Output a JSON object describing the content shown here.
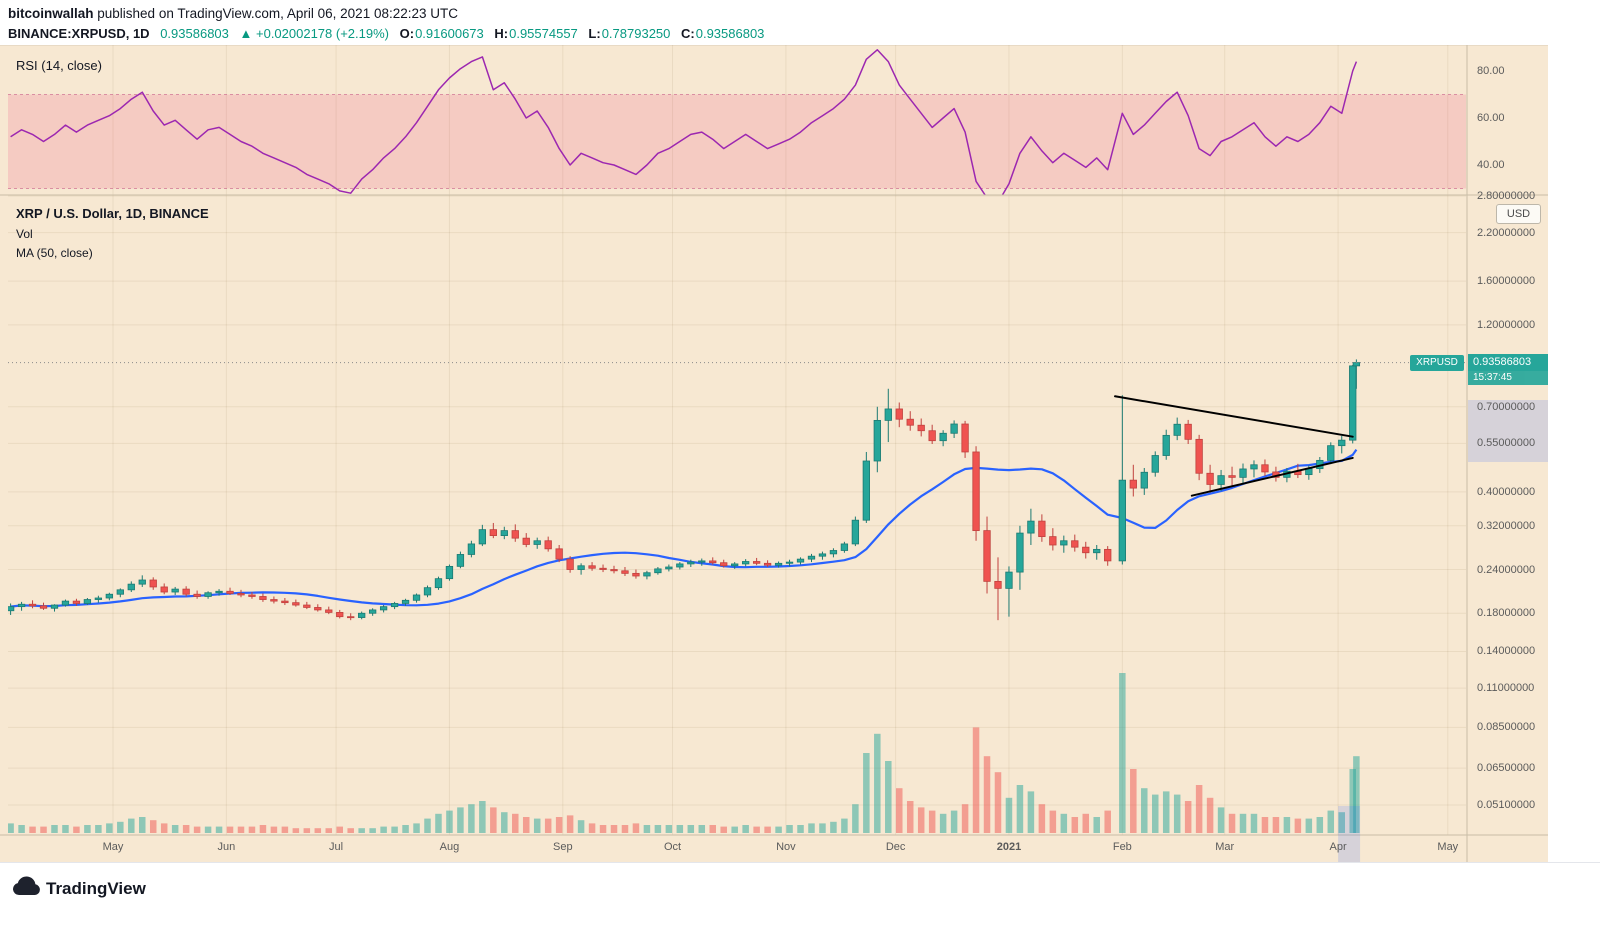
{
  "header": {
    "author": "bitcoinwallah",
    "published_suffix": " published on TradingView.com, April 06, 2021 08:22:23 UTC",
    "symbol_interval": "BINANCE:XRPUSD, 1D",
    "last_price": "0.93586803",
    "change": "▲ +0.02002178 (+2.19%)",
    "ohlc": [
      {
        "label": "O:",
        "value": "0.91600673"
      },
      {
        "label": "H:",
        "value": "0.95574557"
      },
      {
        "label": "L:",
        "value": "0.78793250"
      },
      {
        "label": "C:",
        "value": "0.93586803"
      }
    ]
  },
  "rsi_panel": {
    "legend": "RSI (14, close)"
  },
  "main_panel": {
    "legend_title": "XRP / U.S. Dollar, 1D, BINANCE",
    "legend_vol": "Vol",
    "legend_ma": "MA (50, close)",
    "currency_button": "USD",
    "price_badge": {
      "symbol_tag": "XRPUSD",
      "price": "0.93586803",
      "countdown": "15:37:45"
    }
  },
  "footer": {
    "brand": "TradingView"
  },
  "colors": {
    "background": "#f7e8d2",
    "grid": "rgba(128,96,48,0.10)",
    "panel_divider": "#c9bda7",
    "up": "#26a69a",
    "up_dark": "#1b7a72",
    "down": "#ef5350",
    "down_dark": "#c0413e",
    "volume_up": "rgba(38,166,154,0.5)",
    "volume_down": "rgba(239,83,80,0.5)",
    "ma": "#2962ff",
    "rsi_line": "#9c27b0",
    "rsi_band_fill": "rgba(233,30,99,0.14)",
    "rsi_band_edge": "rgba(194,80,130,0.55)",
    "trendline": "#000000",
    "price_line": "#8a8a8a",
    "badge_bg": "#26a69a",
    "value_up_text": "#089981",
    "axis_highlight": "rgba(41,98,255,0.16)",
    "footer_logo": "#1e222d"
  },
  "chart_data": {
    "type": "candlestick",
    "title": "XRP / U.S. Dollar, 1D, BINANCE",
    "symbol": "BINANCE:XRPUSD",
    "interval": "1D",
    "scale": "log",
    "current_price": 0.93586803,
    "countdown": "15:37:45",
    "x_range": [
      "2020-04-03",
      "2021-05-06"
    ],
    "x_ticks": [
      {
        "label": "May",
        "date": "2020-05-01"
      },
      {
        "label": "Jun",
        "date": "2020-06-01"
      },
      {
        "label": "Jul",
        "date": "2020-07-01"
      },
      {
        "label": "Aug",
        "date": "2020-08-01"
      },
      {
        "label": "Sep",
        "date": "2020-09-01"
      },
      {
        "label": "Oct",
        "date": "2020-10-01"
      },
      {
        "label": "Nov",
        "date": "2020-11-01"
      },
      {
        "label": "Dec",
        "date": "2020-12-01"
      },
      {
        "label": "2021",
        "date": "2021-01-01",
        "bold": true
      },
      {
        "label": "Feb",
        "date": "2021-02-01"
      },
      {
        "label": "Mar",
        "date": "2021-03-01"
      },
      {
        "label": "Apr",
        "date": "2021-04-01"
      },
      {
        "label": "May",
        "date": "2021-05-01"
      }
    ],
    "y_ticks": [
      {
        "label": "2.80000000",
        "value": 2.8
      },
      {
        "label": "2.20000000",
        "value": 2.2
      },
      {
        "label": "1.60000000",
        "value": 1.6
      },
      {
        "label": "1.20000000",
        "value": 1.2
      },
      {
        "label": "0.70000000",
        "value": 0.7
      },
      {
        "label": "0.55000000",
        "value": 0.55
      },
      {
        "label": "0.40000000",
        "value": 0.4
      },
      {
        "label": "0.32000000",
        "value": 0.32
      },
      {
        "label": "0.24000000",
        "value": 0.24
      },
      {
        "label": "0.18000000",
        "value": 0.18
      },
      {
        "label": "0.14000000",
        "value": 0.14
      },
      {
        "label": "0.11000000",
        "value": 0.11
      },
      {
        "label": "0.08500000",
        "value": 0.085
      },
      {
        "label": "0.06500000",
        "value": 0.065
      },
      {
        "label": "0.05100000",
        "value": 0.051
      }
    ],
    "ma": {
      "period_days": 50
    },
    "rsi": {
      "period": 14,
      "band": [
        30,
        70
      ],
      "ticks": [
        {
          "label": "80.00",
          "value": 80
        },
        {
          "label": "60.00",
          "value": 60
        },
        {
          "label": "40.00",
          "value": 40
        }
      ],
      "values": [
        52,
        55,
        53,
        50,
        53,
        57,
        54,
        57,
        59,
        61,
        64,
        68,
        71,
        63,
        57,
        59,
        55,
        51,
        55,
        56,
        53,
        50,
        48,
        45,
        43,
        41,
        39,
        36,
        34,
        32,
        29,
        28,
        34,
        38,
        43,
        47,
        52,
        58,
        65,
        72,
        77,
        81,
        84,
        86,
        72,
        75,
        68,
        60,
        63,
        56,
        47,
        40,
        45,
        43,
        41,
        40,
        38,
        36,
        40,
        45,
        47,
        50,
        53,
        54,
        51,
        47,
        50,
        53,
        50,
        47,
        49,
        51,
        54,
        58,
        61,
        64,
        68,
        74,
        85,
        89,
        84,
        74,
        68,
        62,
        56,
        60,
        64,
        54,
        33,
        26,
        24,
        32,
        45,
        52,
        46,
        41,
        45,
        42,
        39,
        43,
        38,
        62,
        53,
        57,
        62,
        67,
        71,
        61,
        47,
        44,
        50,
        52,
        55,
        58,
        52,
        48,
        52,
        50,
        53,
        58,
        65,
        62,
        80,
        84
      ]
    },
    "trendlines": [
      {
        "x1": "2021-01-30",
        "p1": 0.75,
        "x2": "2021-04-05",
        "p2": 0.575
      },
      {
        "x1": "2021-02-20",
        "p1": 0.39,
        "x2": "2021-04-05",
        "p2": 0.5
      }
    ],
    "ohlc_format": [
      "date",
      "open",
      "high",
      "low",
      "close",
      "volume_relative_0_100"
    ],
    "candles": [
      [
        "2020-04-03",
        0.183,
        0.192,
        0.178,
        0.188,
        6
      ],
      [
        "2020-04-06",
        0.188,
        0.194,
        0.183,
        0.191,
        5
      ],
      [
        "2020-04-09",
        0.191,
        0.196,
        0.186,
        0.189,
        4
      ],
      [
        "2020-04-12",
        0.189,
        0.193,
        0.184,
        0.186,
        4
      ],
      [
        "2020-04-15",
        0.186,
        0.191,
        0.182,
        0.19,
        5
      ],
      [
        "2020-04-18",
        0.19,
        0.197,
        0.188,
        0.195,
        5
      ],
      [
        "2020-04-21",
        0.195,
        0.198,
        0.189,
        0.192,
        4
      ],
      [
        "2020-04-24",
        0.192,
        0.199,
        0.19,
        0.197,
        5
      ],
      [
        "2020-04-27",
        0.197,
        0.202,
        0.193,
        0.199,
        5
      ],
      [
        "2020-04-30",
        0.199,
        0.206,
        0.196,
        0.204,
        6
      ],
      [
        "2020-05-03",
        0.204,
        0.212,
        0.2,
        0.21,
        7
      ],
      [
        "2020-05-06",
        0.21,
        0.222,
        0.207,
        0.218,
        9
      ],
      [
        "2020-05-09",
        0.218,
        0.231,
        0.214,
        0.224,
        10
      ],
      [
        "2020-05-12",
        0.224,
        0.228,
        0.21,
        0.214,
        8
      ],
      [
        "2020-05-15",
        0.214,
        0.219,
        0.204,
        0.207,
        6
      ],
      [
        "2020-05-18",
        0.207,
        0.214,
        0.203,
        0.211,
        5
      ],
      [
        "2020-05-21",
        0.211,
        0.215,
        0.201,
        0.204,
        5
      ],
      [
        "2020-05-24",
        0.204,
        0.209,
        0.198,
        0.201,
        4
      ],
      [
        "2020-05-27",
        0.201,
        0.208,
        0.198,
        0.206,
        4
      ],
      [
        "2020-05-30",
        0.206,
        0.211,
        0.202,
        0.208,
        4
      ],
      [
        "2020-06-02",
        0.208,
        0.213,
        0.203,
        0.205,
        4
      ],
      [
        "2020-06-05",
        0.205,
        0.21,
        0.2,
        0.203,
        4
      ],
      [
        "2020-06-08",
        0.203,
        0.207,
        0.198,
        0.201,
        4
      ],
      [
        "2020-06-11",
        0.201,
        0.205,
        0.194,
        0.197,
        5
      ],
      [
        "2020-06-14",
        0.197,
        0.201,
        0.192,
        0.195,
        4
      ],
      [
        "2020-06-17",
        0.195,
        0.199,
        0.19,
        0.193,
        4
      ],
      [
        "2020-06-20",
        0.193,
        0.197,
        0.188,
        0.19,
        3
      ],
      [
        "2020-06-23",
        0.19,
        0.194,
        0.185,
        0.187,
        3
      ],
      [
        "2020-06-26",
        0.187,
        0.191,
        0.182,
        0.184,
        3
      ],
      [
        "2020-06-29",
        0.184,
        0.188,
        0.179,
        0.181,
        3
      ],
      [
        "2020-07-02",
        0.181,
        0.184,
        0.174,
        0.176,
        4
      ],
      [
        "2020-07-05",
        0.176,
        0.18,
        0.172,
        0.175,
        3
      ],
      [
        "2020-07-08",
        0.175,
        0.182,
        0.173,
        0.18,
        3
      ],
      [
        "2020-07-11",
        0.18,
        0.186,
        0.177,
        0.184,
        3
      ],
      [
        "2020-07-14",
        0.184,
        0.19,
        0.181,
        0.188,
        4
      ],
      [
        "2020-07-17",
        0.188,
        0.194,
        0.185,
        0.192,
        4
      ],
      [
        "2020-07-20",
        0.192,
        0.198,
        0.189,
        0.196,
        5
      ],
      [
        "2020-07-23",
        0.196,
        0.205,
        0.193,
        0.203,
        6
      ],
      [
        "2020-07-26",
        0.203,
        0.216,
        0.2,
        0.213,
        9
      ],
      [
        "2020-07-29",
        0.213,
        0.229,
        0.21,
        0.226,
        12
      ],
      [
        "2020-08-01",
        0.226,
        0.248,
        0.223,
        0.245,
        14
      ],
      [
        "2020-08-04",
        0.245,
        0.27,
        0.242,
        0.265,
        16
      ],
      [
        "2020-08-07",
        0.265,
        0.29,
        0.26,
        0.284,
        18
      ],
      [
        "2020-08-10",
        0.284,
        0.322,
        0.28,
        0.312,
        20
      ],
      [
        "2020-08-13",
        0.312,
        0.326,
        0.295,
        0.3,
        16
      ],
      [
        "2020-08-16",
        0.3,
        0.318,
        0.293,
        0.31,
        13
      ],
      [
        "2020-08-19",
        0.31,
        0.323,
        0.288,
        0.295,
        12
      ],
      [
        "2020-08-22",
        0.295,
        0.305,
        0.278,
        0.283,
        10
      ],
      [
        "2020-08-25",
        0.283,
        0.296,
        0.275,
        0.29,
        9
      ],
      [
        "2020-08-28",
        0.29,
        0.298,
        0.27,
        0.275,
        9
      ],
      [
        "2020-08-31",
        0.275,
        0.282,
        0.252,
        0.257,
        10
      ],
      [
        "2020-09-03",
        0.257,
        0.262,
        0.235,
        0.24,
        11
      ],
      [
        "2020-09-06",
        0.24,
        0.25,
        0.232,
        0.246,
        8
      ],
      [
        "2020-09-09",
        0.246,
        0.252,
        0.238,
        0.242,
        6
      ],
      [
        "2020-09-12",
        0.242,
        0.248,
        0.236,
        0.24,
        5
      ],
      [
        "2020-09-15",
        0.24,
        0.246,
        0.234,
        0.238,
        5
      ],
      [
        "2020-09-18",
        0.238,
        0.244,
        0.23,
        0.234,
        5
      ],
      [
        "2020-09-21",
        0.234,
        0.24,
        0.226,
        0.23,
        6
      ],
      [
        "2020-09-24",
        0.23,
        0.238,
        0.225,
        0.235,
        5
      ],
      [
        "2020-09-27",
        0.235,
        0.244,
        0.232,
        0.241,
        5
      ],
      [
        "2020-09-30",
        0.241,
        0.248,
        0.237,
        0.244,
        5
      ],
      [
        "2020-10-03",
        0.244,
        0.252,
        0.24,
        0.249,
        5
      ],
      [
        "2020-10-06",
        0.249,
        0.256,
        0.244,
        0.252,
        5
      ],
      [
        "2020-10-09",
        0.252,
        0.258,
        0.246,
        0.254,
        5
      ],
      [
        "2020-10-12",
        0.254,
        0.26,
        0.248,
        0.251,
        5
      ],
      [
        "2020-10-15",
        0.251,
        0.256,
        0.243,
        0.246,
        4
      ],
      [
        "2020-10-18",
        0.246,
        0.252,
        0.241,
        0.249,
        4
      ],
      [
        "2020-10-21",
        0.249,
        0.257,
        0.245,
        0.253,
        5
      ],
      [
        "2020-10-24",
        0.253,
        0.259,
        0.247,
        0.25,
        4
      ],
      [
        "2020-10-27",
        0.25,
        0.255,
        0.244,
        0.247,
        4
      ],
      [
        "2020-10-30",
        0.247,
        0.253,
        0.243,
        0.25,
        4
      ],
      [
        "2020-11-02",
        0.25,
        0.256,
        0.245,
        0.252,
        5
      ],
      [
        "2020-11-05",
        0.252,
        0.26,
        0.248,
        0.257,
        5
      ],
      [
        "2020-11-08",
        0.257,
        0.266,
        0.252,
        0.262,
        6
      ],
      [
        "2020-11-11",
        0.262,
        0.27,
        0.256,
        0.266,
        6
      ],
      [
        "2020-11-14",
        0.266,
        0.276,
        0.26,
        0.272,
        7
      ],
      [
        "2020-11-17",
        0.272,
        0.288,
        0.268,
        0.284,
        9
      ],
      [
        "2020-11-20",
        0.284,
        0.34,
        0.28,
        0.332,
        18
      ],
      [
        "2020-11-23",
        0.332,
        0.52,
        0.326,
        0.49,
        50
      ],
      [
        "2020-11-26",
        0.49,
        0.7,
        0.455,
        0.64,
        62
      ],
      [
        "2020-11-29",
        0.64,
        0.788,
        0.555,
        0.69,
        45
      ],
      [
        "2020-12-02",
        0.69,
        0.72,
        0.612,
        0.645,
        28
      ],
      [
        "2020-12-05",
        0.645,
        0.68,
        0.598,
        0.62,
        20
      ],
      [
        "2020-12-08",
        0.62,
        0.648,
        0.576,
        0.598,
        16
      ],
      [
        "2020-12-11",
        0.598,
        0.622,
        0.548,
        0.56,
        14
      ],
      [
        "2020-12-14",
        0.56,
        0.6,
        0.54,
        0.588,
        12
      ],
      [
        "2020-12-17",
        0.588,
        0.64,
        0.57,
        0.625,
        14
      ],
      [
        "2020-12-20",
        0.625,
        0.638,
        0.5,
        0.52,
        18
      ],
      [
        "2020-12-23",
        0.52,
        0.54,
        0.29,
        0.31,
        66
      ],
      [
        "2020-12-26",
        0.31,
        0.34,
        0.205,
        0.222,
        48
      ],
      [
        "2020-12-29",
        0.222,
        0.26,
        0.172,
        0.212,
        38
      ],
      [
        "2021-01-01",
        0.212,
        0.245,
        0.176,
        0.236,
        22
      ],
      [
        "2021-01-04",
        0.236,
        0.32,
        0.21,
        0.305,
        30
      ],
      [
        "2021-01-07",
        0.305,
        0.358,
        0.282,
        0.33,
        26
      ],
      [
        "2021-01-10",
        0.33,
        0.345,
        0.288,
        0.298,
        18
      ],
      [
        "2021-01-13",
        0.298,
        0.315,
        0.272,
        0.282,
        14
      ],
      [
        "2021-01-16",
        0.282,
        0.3,
        0.268,
        0.29,
        12
      ],
      [
        "2021-01-19",
        0.29,
        0.302,
        0.27,
        0.278,
        10
      ],
      [
        "2021-01-22",
        0.278,
        0.288,
        0.258,
        0.268,
        12
      ],
      [
        "2021-01-25",
        0.268,
        0.282,
        0.256,
        0.274,
        10
      ],
      [
        "2021-01-28",
        0.274,
        0.28,
        0.246,
        0.254,
        14
      ],
      [
        "2021-02-01",
        0.254,
        0.755,
        0.248,
        0.432,
        100
      ],
      [
        "2021-02-04",
        0.432,
        0.478,
        0.388,
        0.41,
        40
      ],
      [
        "2021-02-07",
        0.41,
        0.468,
        0.392,
        0.455,
        28
      ],
      [
        "2021-02-10",
        0.455,
        0.522,
        0.442,
        0.508,
        24
      ],
      [
        "2021-02-13",
        0.508,
        0.602,
        0.494,
        0.58,
        26
      ],
      [
        "2021-02-16",
        0.58,
        0.652,
        0.562,
        0.624,
        24
      ],
      [
        "2021-02-19",
        0.624,
        0.642,
        0.548,
        0.565,
        20
      ],
      [
        "2021-02-22",
        0.565,
        0.582,
        0.432,
        0.452,
        30
      ],
      [
        "2021-02-25",
        0.452,
        0.478,
        0.398,
        0.42,
        22
      ],
      [
        "2021-02-28",
        0.42,
        0.462,
        0.402,
        0.445,
        16
      ],
      [
        "2021-03-03",
        0.445,
        0.472,
        0.415,
        0.44,
        12
      ],
      [
        "2021-03-06",
        0.44,
        0.482,
        0.422,
        0.465,
        12
      ],
      [
        "2021-03-09",
        0.465,
        0.492,
        0.44,
        0.478,
        12
      ],
      [
        "2021-03-12",
        0.478,
        0.495,
        0.444,
        0.456,
        10
      ],
      [
        "2021-03-15",
        0.456,
        0.472,
        0.428,
        0.44,
        10
      ],
      [
        "2021-03-18",
        0.44,
        0.468,
        0.426,
        0.458,
        10
      ],
      [
        "2021-03-21",
        0.458,
        0.481,
        0.438,
        0.448,
        9
      ],
      [
        "2021-03-24",
        0.448,
        0.476,
        0.433,
        0.466,
        9
      ],
      [
        "2021-03-27",
        0.466,
        0.503,
        0.453,
        0.492,
        10
      ],
      [
        "2021-03-30",
        0.492,
        0.554,
        0.48,
        0.542,
        14
      ],
      [
        "2021-04-02",
        0.542,
        0.578,
        0.515,
        0.562,
        13
      ],
      [
        "2021-04-05",
        0.562,
        0.922,
        0.55,
        0.916,
        40
      ],
      [
        "2021-04-06",
        0.916,
        0.95574557,
        0.7879325,
        0.93586803,
        48
      ]
    ]
  }
}
